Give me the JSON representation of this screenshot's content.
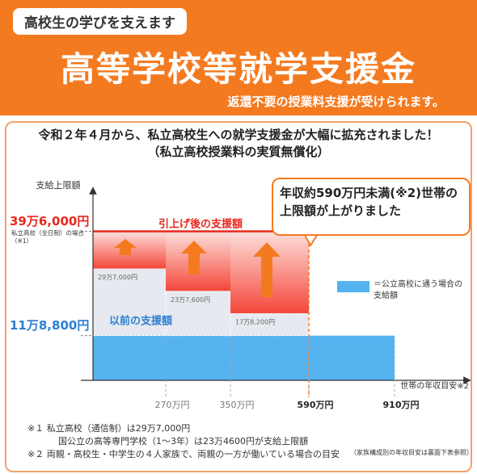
{
  "header": {
    "tag": "高校生の学びを支えます",
    "title": "高等学校等就学支援金",
    "subtitle": "返還不要の授業料支援が受けられます。"
  },
  "chart_data": {
    "type": "step",
    "title": "令和２年４月から、私立高校生への就学支援金が大幅に拡充されました！",
    "subtitle": "（私立高校授業料の実質無償化）",
    "y_label": "支給上限額",
    "x_label": "世帯の年収目安※2",
    "ylim": [
      0,
      500000
    ],
    "yticks": [
      {
        "value": 118800,
        "label": "11万8,800円"
      },
      {
        "value": 396000,
        "label": "39万6,000円"
      }
    ],
    "ytick_note": "私立高校（全日制）の場合（※1）",
    "xticks": [
      {
        "value": 270,
        "label": "270万円"
      },
      {
        "value": 350,
        "label": "350万円"
      },
      {
        "value": 590,
        "label": "590万円"
      },
      {
        "value": 910,
        "label": "910万円"
      }
    ],
    "series": [
      {
        "name": "＝公立高校に通う場合の支給額",
        "color": "#55b3f0",
        "values": [
          118800,
          118800,
          118800,
          118800
        ]
      },
      {
        "name": "以前の支援額",
        "color": "#e6e9ef",
        "values": [
          297000,
          237600,
          178200,
          118800
        ],
        "value_labels": [
          "29万7,000円",
          "23万7,600円",
          "17万8,200円",
          null
        ]
      },
      {
        "name": "引上げ後の支援額",
        "color": "#e8281e",
        "values": [
          396000,
          396000,
          396000,
          null
        ]
      }
    ],
    "annotation": "年収約590万円未満(※2)世帯の上限額が上がりました"
  },
  "footnotes": [
    "※１ 私立高校（通信制）は29万7,000円",
    "国公立の高等専門学校（1～3年）は23万4600円が支給上限額",
    "※２ 両親・高校生・中学生の４人家族で、両親の一方が働いている場合の目安",
    "（家族構成別の年収目安は裏面下表参照）"
  ]
}
